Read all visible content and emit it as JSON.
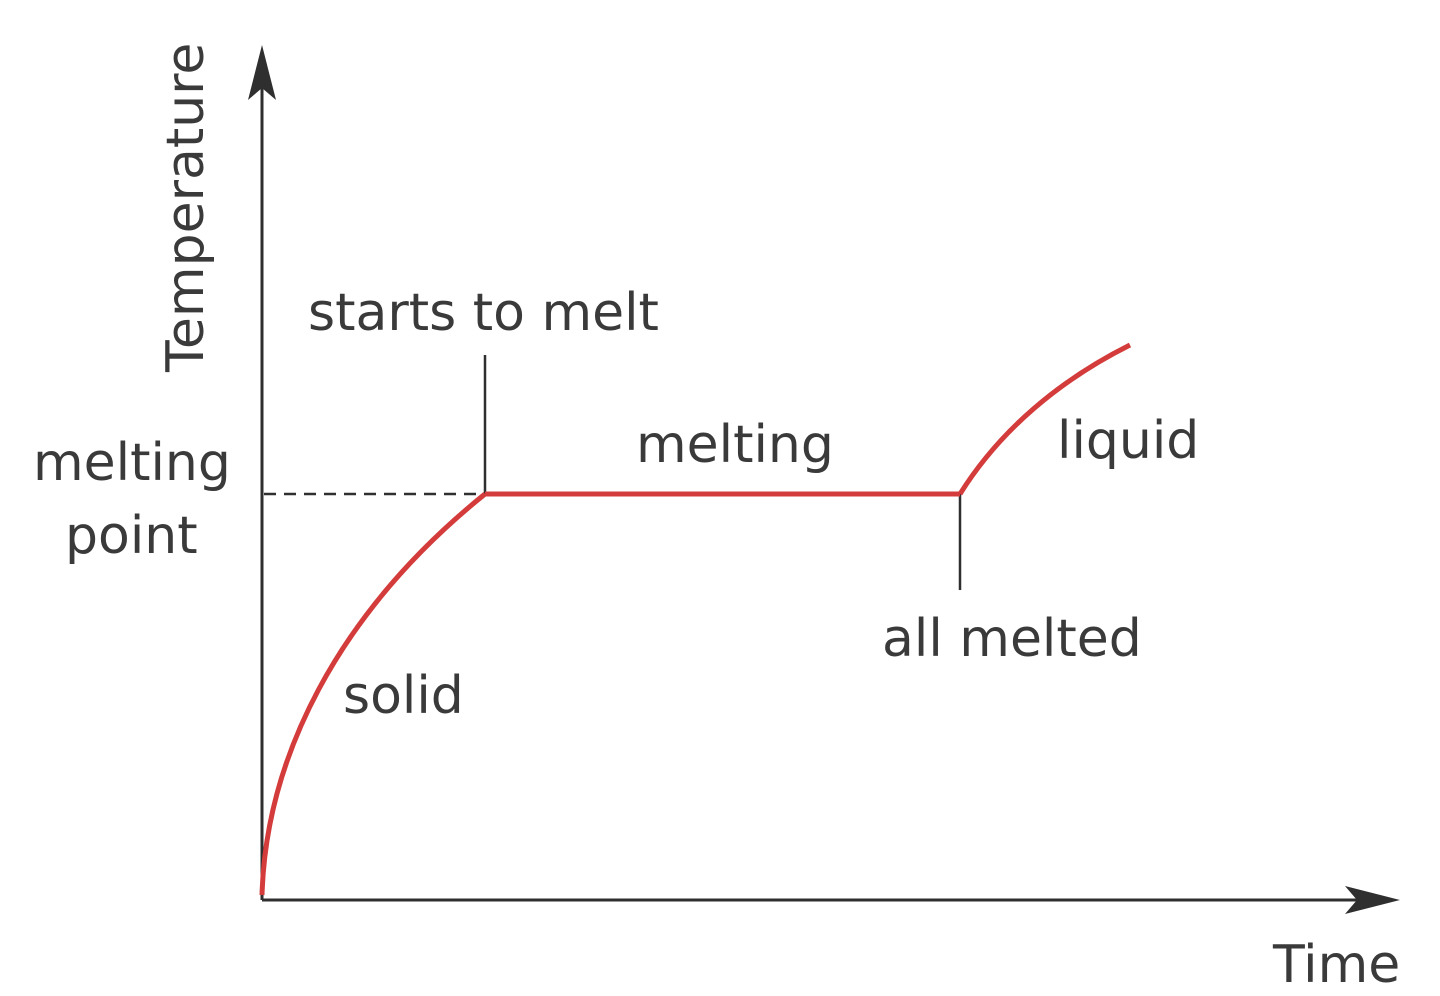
{
  "diagram": {
    "axes": {
      "y_label": "Temperature",
      "x_label": "Time"
    },
    "labels": {
      "melting_point": [
        "melting",
        "point"
      ],
      "starts_to_melt": "starts to melt",
      "melting": "melting",
      "all_melted": "all melted",
      "solid": "solid",
      "liquid": "liquid"
    },
    "colors": {
      "curve": "#d43c3c",
      "axis": "#2f2f2f"
    }
  }
}
